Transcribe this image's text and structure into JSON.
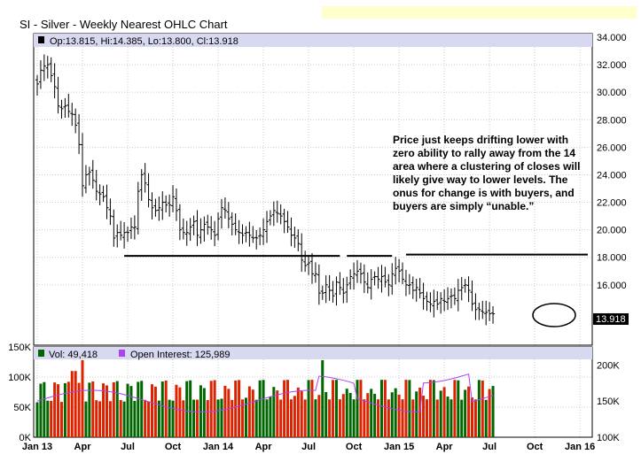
{
  "title": "SI - Silver - Weekly Nearest OHLC Chart",
  "chart_data": [
    {
      "type": "ohlc",
      "legend": "Op:13.815, Hi:14.385, Lo:13.800, Cl:13.918",
      "last_price_label": "13.918",
      "ylim": [
        12,
        34
      ],
      "y_ticks": [
        "34.000",
        "32.000",
        "30.000",
        "28.000",
        "26.000",
        "24.000",
        "22.000",
        "20.000",
        "18.000",
        "16.000"
      ],
      "x_ticks": [
        "Jan 13",
        "Apr",
        "Jul",
        "Oct",
        "Jan 14",
        "Apr",
        "Jul",
        "Oct",
        "Jan 15",
        "Apr",
        "Jul",
        "Oct",
        "Jan 16"
      ],
      "x_range": [
        0,
        158
      ],
      "weekly_closes": [
        30.6,
        31.6,
        31.9,
        32.0,
        31.2,
        30.4,
        29.0,
        28.8,
        29.0,
        28.6,
        28.4,
        27.6,
        26.2,
        23.2,
        24.0,
        24.2,
        23.6,
        22.8,
        22.6,
        22.4,
        21.6,
        21.0,
        19.4,
        19.8,
        19.6,
        19.8,
        19.8,
        20.2,
        20.2,
        22.8,
        24.0,
        23.4,
        22.2,
        21.6,
        21.4,
        21.6,
        22.0,
        21.8,
        21.8,
        22.4,
        21.4,
        20.0,
        19.8,
        19.8,
        20.2,
        20.6,
        19.6,
        20.0,
        20.4,
        20.2,
        20.0,
        19.6,
        20.8,
        21.6,
        21.4,
        20.8,
        20.4,
        20.0,
        19.8,
        19.6,
        19.8,
        19.6,
        19.4,
        19.4,
        19.6,
        20.0,
        20.6,
        21.0,
        21.4,
        21.2,
        21.0,
        20.6,
        20.2,
        19.6,
        19.4,
        19.0,
        17.8,
        17.4,
        17.6,
        16.8,
        16.8,
        15.4,
        15.4,
        16.0,
        15.6,
        15.2,
        16.2,
        15.8,
        15.4,
        16.0,
        16.6,
        16.8,
        17.0,
        16.8,
        16.2,
        15.8,
        16.4,
        16.6,
        16.4,
        16.6,
        16.2,
        16.0,
        16.8,
        17.2,
        17.0,
        16.4,
        16.0,
        16.0,
        15.6,
        15.8,
        15.4,
        15.0,
        14.8,
        14.6,
        14.8,
        14.6,
        15.0,
        14.8,
        15.0,
        15.2,
        15.0,
        15.6,
        15.8,
        16.0,
        15.6,
        14.6,
        14.2,
        14.2,
        14.0,
        14.0,
        13.9,
        13.9
      ],
      "support_lines": [
        {
          "x1": 25,
          "x2": 87,
          "y": 18.1
        },
        {
          "x1": 89,
          "x2": 102,
          "y": 18.1
        },
        {
          "x1": 106,
          "x2": 160,
          "y": 18.2
        }
      ],
      "annotation": [
        "Price just keeps drifting lower with",
        "zero ability to rally away from the 14",
        "area where a clustering of closes will",
        "likely give way to lower levels.  The",
        "onus for change is with buyers, and",
        "buyers are simply “unable.”"
      ]
    },
    {
      "type": "bar+line",
      "legend_volume": "Vol: 49,418",
      "legend_oi": "Open Interest: 125,989",
      "colors": {
        "volume_up": "#006600",
        "volume_down": "#dd2200",
        "open_interest": "#aa44ee"
      },
      "volume_ylim": [
        0,
        150000
      ],
      "volume_ticks": [
        "150K",
        "100K",
        "50K",
        "0K"
      ],
      "oi_ylim": [
        100000,
        225000
      ],
      "oi_ticks": [
        "200K",
        "150K",
        "100K"
      ]
    }
  ]
}
